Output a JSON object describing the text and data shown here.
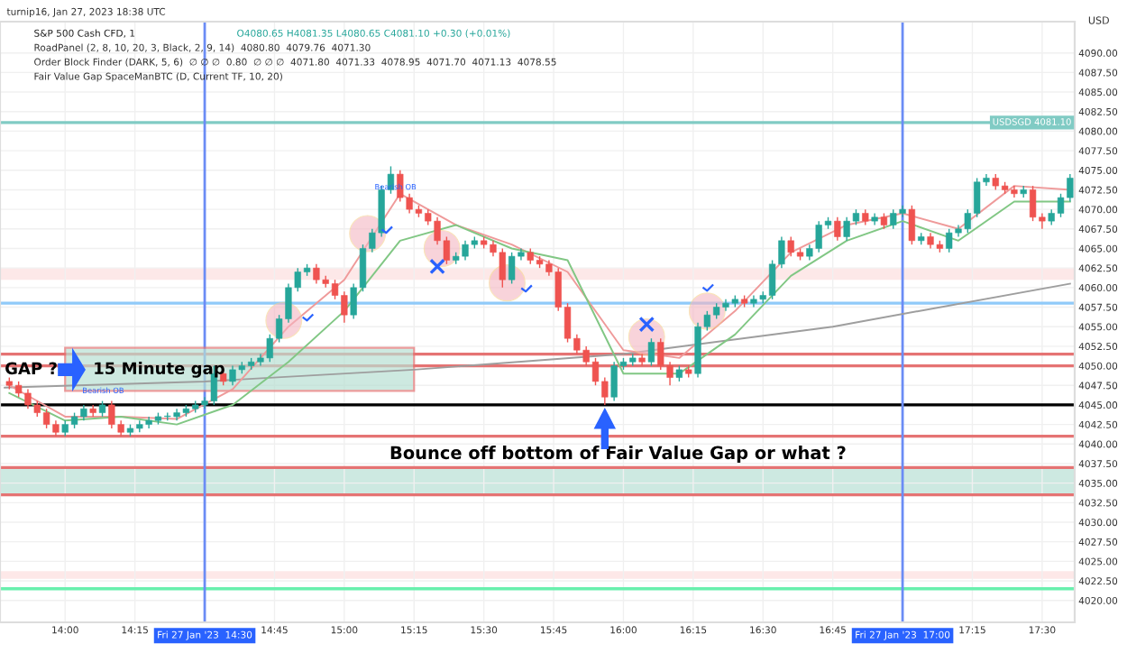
{
  "chart_data": {
    "type": "candlestick",
    "title": "S&P 500 Cash CFD, 1",
    "subtitle": "O4080.65 H4081.35 L4080.65 C4081.10 +0.30 (+0.01%)",
    "annotations": [
      "turnip16, Jan 27, 2023 18:38 UTC",
      "RoadPanel (2, 8, 10, 20, 3, Black, 2, 9, 14)  4080.80  4079.76  4071.30",
      "Order Block Finder (DARK, 5, 6)  ∅ ∅ ∅  0.80  ∅ ∅ ∅  4071.80  4071.33  4078.95  4071.70  4071.13  4078.55",
      "Fair Value Gap SpaceManBTC (D, Current TF, 10, 20)",
      "USD",
      {
        "text": "GAP ?",
        "x": "2023-01-27T13:47",
        "y": 4049.5
      },
      {
        "text": "15 Minute gap",
        "x": "2023-01-27T14:06",
        "y": 4049.5
      },
      "Bounce off bottom of Fair Value Gap or what ?",
      "Bearish OB",
      "Bearish OB"
    ],
    "colors": [
      "#ef5350",
      "#ef5350",
      "#ef5350",
      "#ef5350",
      "#ef5350",
      "#ef5350",
      "#26a69a",
      "#26a69a",
      "#26a69a",
      "#ef5350",
      "#26a69a",
      "#ef5350",
      "#ef5350",
      "#26a69a",
      "#26a69a",
      "#26a69a",
      "#26a69a",
      "#26a69a",
      "#26a69a",
      "#26a69a",
      "#26a69a",
      "#26a69a",
      "#26a69a",
      "#ef5350",
      "#26a69a",
      "#26a69a",
      "#26a69a",
      "#26a69a",
      "#26a69a",
      "#26a69a",
      "#26a69a",
      "#26a69a",
      "#26a69a",
      "#ef5350",
      "#ef5350",
      "#ef5350",
      "#ef5350",
      "#26a69a",
      "#26a69a",
      "#26a69a",
      "#26a69a",
      "#26a69a",
      "#ef5350",
      "#ef5350",
      "#ef5350",
      "#ef5350",
      "#ef5350",
      "#ef5350",
      "#26a69a",
      "#26a69a",
      "#26a69a",
      "#ef5350",
      "#ef5350",
      "#ef5350",
      "#26a69a",
      "#26a69a",
      "#ef5350",
      "#ef5350",
      "#ef5350",
      "#ef5350",
      "#ef5350",
      "#ef5350",
      "#ef5350",
      "#ef5350",
      "#ef5350",
      "#26a69a",
      "#26a69a",
      "#26a69a",
      "#ef5350",
      "#26a69a",
      "#ef5350",
      "#ef5350",
      "#26a69a",
      "#ef5350",
      "#26a69a",
      "#26a69a",
      "#26a69a",
      "#26a69a",
      "#26a69a",
      "#ef5350",
      "#26a69a",
      "#26a69a",
      "#26a69a",
      "#26a69a",
      "#ef5350",
      "#ef5350",
      "#26a69a",
      "#26a69a",
      "#26a69a",
      "#ef5350",
      "#26a69a",
      "#26a69a",
      "#ef5350",
      "#26a69a",
      "#ef5350",
      "#26a69a",
      "#26a69a",
      "#ef5350",
      "#26a69a",
      "#ef5350",
      "#ef5350",
      "#26a69a",
      "#26a69a",
      "#26a69a",
      "#26a69a",
      "#26a69a",
      "#ef5350",
      "#ef5350",
      "#ef5350",
      "#26a69a",
      "#ef5350",
      "#ef5350",
      "#26a69a",
      "#26a69a",
      "#26a69a"
    ],
    "x": [
      "2023-01-27T13:48",
      "2023-01-27T13:50",
      "2023-01-27T13:52",
      "2023-01-27T13:54",
      "2023-01-27T13:56",
      "2023-01-27T13:58",
      "2023-01-27T14:00",
      "2023-01-27T14:02",
      "2023-01-27T14:04",
      "2023-01-27T14:06",
      "2023-01-27T14:08",
      "2023-01-27T14:10",
      "2023-01-27T14:12",
      "2023-01-27T14:14",
      "2023-01-27T14:16",
      "2023-01-27T14:18",
      "2023-01-27T14:20",
      "2023-01-27T14:22",
      "2023-01-27T14:24",
      "2023-01-27T14:26",
      "2023-01-27T14:28",
      "2023-01-27T14:30",
      "2023-01-27T14:32",
      "2023-01-27T14:34",
      "2023-01-27T14:36",
      "2023-01-27T14:38",
      "2023-01-27T14:40",
      "2023-01-27T14:42",
      "2023-01-27T14:44",
      "2023-01-27T14:46",
      "2023-01-27T14:48",
      "2023-01-27T14:50",
      "2023-01-27T14:52",
      "2023-01-27T14:54",
      "2023-01-27T14:56",
      "2023-01-27T14:58",
      "2023-01-27T15:00",
      "2023-01-27T15:02",
      "2023-01-27T15:04",
      "2023-01-27T15:06",
      "2023-01-27T15:08",
      "2023-01-27T15:10",
      "2023-01-27T15:12",
      "2023-01-27T15:14",
      "2023-01-27T15:16",
      "2023-01-27T15:18",
      "2023-01-27T15:20",
      "2023-01-27T15:22",
      "2023-01-27T15:24",
      "2023-01-27T15:26",
      "2023-01-27T15:28",
      "2023-01-27T15:30",
      "2023-01-27T15:32",
      "2023-01-27T15:34",
      "2023-01-27T15:36",
      "2023-01-27T15:38",
      "2023-01-27T15:40",
      "2023-01-27T15:42",
      "2023-01-27T15:44",
      "2023-01-27T15:46",
      "2023-01-27T15:48",
      "2023-01-27T15:50",
      "2023-01-27T15:52",
      "2023-01-27T15:54",
      "2023-01-27T15:56",
      "2023-01-27T15:58",
      "2023-01-27T16:00",
      "2023-01-27T16:02",
      "2023-01-27T16:04",
      "2023-01-27T16:06",
      "2023-01-27T16:08",
      "2023-01-27T16:10",
      "2023-01-27T16:12",
      "2023-01-27T16:14",
      "2023-01-27T16:16",
      "2023-01-27T16:18",
      "2023-01-27T16:20",
      "2023-01-27T16:22",
      "2023-01-27T16:24",
      "2023-01-27T16:26",
      "2023-01-27T16:28",
      "2023-01-27T16:30",
      "2023-01-27T16:32",
      "2023-01-27T16:34",
      "2023-01-27T16:36",
      "2023-01-27T16:38",
      "2023-01-27T16:40",
      "2023-01-27T16:42",
      "2023-01-27T16:44",
      "2023-01-27T16:46",
      "2023-01-27T16:48",
      "2023-01-27T16:50",
      "2023-01-27T16:52",
      "2023-01-27T16:54",
      "2023-01-27T16:56",
      "2023-01-27T16:58",
      "2023-01-27T17:00",
      "2023-01-27T17:02",
      "2023-01-27T17:04",
      "2023-01-27T17:06",
      "2023-01-27T17:08",
      "2023-01-27T17:10",
      "2023-01-27T17:12",
      "2023-01-27T17:14",
      "2023-01-27T17:16",
      "2023-01-27T17:18",
      "2023-01-27T17:20",
      "2023-01-27T17:22",
      "2023-01-27T17:24",
      "2023-01-27T17:26",
      "2023-01-27T17:28",
      "2023-01-27T17:30",
      "2023-01-27T17:32",
      "2023-01-27T17:34",
      "2023-01-27T17:36"
    ],
    "ohlc": [
      [
        4048.0,
        4048.5,
        4047.0,
        4047.5
      ],
      [
        4047.5,
        4048.0,
        4046.0,
        4046.5
      ],
      [
        4046.5,
        4047.0,
        4044.5,
        4045.0
      ],
      [
        4045.0,
        4045.5,
        4043.5,
        4044.0
      ],
      [
        4044.0,
        4044.5,
        4042.0,
        4042.5
      ],
      [
        4042.5,
        4043.0,
        4041.0,
        4041.5
      ],
      [
        4041.5,
        4043.0,
        4041.0,
        4042.5
      ],
      [
        4042.5,
        4044.0,
        4042.0,
        4043.5
      ],
      [
        4043.5,
        4045.0,
        4043.0,
        4044.5
      ],
      [
        4044.5,
        4045.0,
        4043.5,
        4044.0
      ],
      [
        4044.0,
        4045.5,
        4043.5,
        4045.0
      ],
      [
        4045.0,
        4045.5,
        4042.0,
        4042.5
      ],
      [
        4042.5,
        4043.0,
        4041.0,
        4041.5
      ],
      [
        4041.5,
        4042.5,
        4041.0,
        4042.0
      ],
      [
        4042.0,
        4043.0,
        4041.5,
        4042.5
      ],
      [
        4042.5,
        4043.5,
        4042.0,
        4043.0
      ],
      [
        4043.0,
        4044.0,
        4042.5,
        4043.5
      ],
      [
        4043.5,
        4044.0,
        4043.0,
        4043.5
      ],
      [
        4043.5,
        4044.5,
        4043.0,
        4044.0
      ],
      [
        4044.0,
        4045.0,
        4043.5,
        4044.5
      ],
      [
        4044.5,
        4045.5,
        4044.0,
        4045.0
      ],
      [
        4045.0,
        4046.0,
        4044.5,
        4045.5
      ],
      [
        4045.5,
        4050.0,
        4045.0,
        4049.0
      ],
      [
        4049.0,
        4049.5,
        4047.5,
        4048.0
      ],
      [
        4048.0,
        4050.0,
        4047.5,
        4049.5
      ],
      [
        4049.5,
        4050.5,
        4049.0,
        4050.0
      ],
      [
        4050.0,
        4051.0,
        4049.5,
        4050.5
      ],
      [
        4050.5,
        4051.5,
        4050.0,
        4051.0
      ],
      [
        4051.0,
        4054.0,
        4050.5,
        4053.5
      ],
      [
        4053.5,
        4056.5,
        4053.0,
        4056.0
      ],
      [
        4056.0,
        4060.5,
        4055.5,
        4060.0
      ],
      [
        4060.0,
        4062.5,
        4059.5,
        4062.0
      ],
      [
        4062.0,
        4063.0,
        4061.5,
        4062.5
      ],
      [
        4062.5,
        4063.0,
        4060.5,
        4061.0
      ],
      [
        4061.0,
        4061.5,
        4060.0,
        4060.5
      ],
      [
        4060.5,
        4061.0,
        4058.5,
        4059.0
      ],
      [
        4059.0,
        4059.5,
        4055.5,
        4056.5
      ],
      [
        4056.5,
        4060.5,
        4056.0,
        4060.0
      ],
      [
        4060.0,
        4065.5,
        4059.5,
        4065.0
      ],
      [
        4065.0,
        4067.5,
        4064.5,
        4067.0
      ],
      [
        4067.0,
        4073.0,
        4066.5,
        4072.5
      ],
      [
        4072.5,
        4075.5,
        4072.0,
        4074.5
      ],
      [
        4074.5,
        4075.0,
        4071.0,
        4071.5
      ],
      [
        4071.5,
        4072.0,
        4069.5,
        4070.0
      ],
      [
        4070.0,
        4070.5,
        4069.0,
        4069.5
      ],
      [
        4069.5,
        4070.0,
        4068.0,
        4068.5
      ],
      [
        4068.5,
        4069.0,
        4065.5,
        4066.0
      ],
      [
        4066.0,
        4066.5,
        4063.0,
        4063.5
      ],
      [
        4063.5,
        4064.5,
        4063.0,
        4064.0
      ],
      [
        4064.0,
        4066.0,
        4063.5,
        4065.5
      ],
      [
        4065.5,
        4066.5,
        4065.0,
        4066.0
      ],
      [
        4066.0,
        4066.5,
        4065.0,
        4065.5
      ],
      [
        4065.5,
        4066.0,
        4064.0,
        4064.5
      ],
      [
        4064.5,
        4065.0,
        4060.0,
        4061.0
      ],
      [
        4061.0,
        4064.5,
        4060.5,
        4064.0
      ],
      [
        4064.0,
        4065.0,
        4063.5,
        4064.5
      ],
      [
        4064.5,
        4065.0,
        4063.0,
        4063.5
      ],
      [
        4063.5,
        4064.0,
        4062.5,
        4063.0
      ],
      [
        4063.0,
        4063.5,
        4061.5,
        4062.0
      ],
      [
        4062.0,
        4062.5,
        4057.0,
        4057.5
      ],
      [
        4057.5,
        4058.0,
        4053.0,
        4053.5
      ],
      [
        4053.5,
        4054.0,
        4051.5,
        4052.0
      ],
      [
        4052.0,
        4052.5,
        4050.0,
        4050.5
      ],
      [
        4050.5,
        4051.0,
        4047.5,
        4048.0
      ],
      [
        4048.0,
        4048.5,
        4045.0,
        4046.0
      ],
      [
        4046.0,
        4050.5,
        4045.5,
        4050.0
      ],
      [
        4050.0,
        4051.0,
        4049.5,
        4050.5
      ],
      [
        4050.5,
        4051.5,
        4050.0,
        4051.0
      ],
      [
        4051.0,
        4051.5,
        4050.0,
        4050.5
      ],
      [
        4050.5,
        4053.5,
        4050.0,
        4053.0
      ],
      [
        4053.0,
        4053.5,
        4049.5,
        4050.0
      ],
      [
        4050.0,
        4050.5,
        4047.5,
        4048.5
      ],
      [
        4048.5,
        4050.0,
        4048.0,
        4049.5
      ],
      [
        4049.5,
        4050.0,
        4048.5,
        4049.0
      ],
      [
        4049.0,
        4055.5,
        4048.5,
        4055.0
      ],
      [
        4055.0,
        4057.0,
        4054.5,
        4056.5
      ],
      [
        4056.5,
        4058.0,
        4056.0,
        4057.5
      ],
      [
        4057.5,
        4058.5,
        4057.0,
        4058.0
      ],
      [
        4058.0,
        4059.0,
        4057.5,
        4058.5
      ],
      [
        4058.5,
        4059.0,
        4057.5,
        4058.0
      ],
      [
        4058.0,
        4059.0,
        4057.5,
        4058.5
      ],
      [
        4058.5,
        4059.5,
        4058.0,
        4059.0
      ],
      [
        4059.0,
        4063.5,
        4058.5,
        4063.0
      ],
      [
        4063.0,
        4066.5,
        4062.5,
        4066.0
      ],
      [
        4066.0,
        4066.5,
        4064.0,
        4064.5
      ],
      [
        4064.5,
        4065.0,
        4063.5,
        4064.0
      ],
      [
        4064.0,
        4065.5,
        4063.5,
        4065.0
      ],
      [
        4065.0,
        4068.5,
        4064.5,
        4068.0
      ],
      [
        4068.0,
        4069.0,
        4067.5,
        4068.5
      ],
      [
        4068.5,
        4069.0,
        4066.0,
        4066.5
      ],
      [
        4066.5,
        4069.0,
        4066.0,
        4068.5
      ],
      [
        4068.5,
        4070.0,
        4068.0,
        4069.5
      ],
      [
        4069.5,
        4070.0,
        4068.0,
        4068.5
      ],
      [
        4068.5,
        4069.5,
        4068.0,
        4069.0
      ],
      [
        4069.0,
        4069.5,
        4067.5,
        4068.0
      ],
      [
        4068.0,
        4070.0,
        4067.5,
        4069.5
      ],
      [
        4069.5,
        4070.5,
        4069.0,
        4070.0
      ],
      [
        4070.0,
        4070.5,
        4065.5,
        4066.0
      ],
      [
        4066.0,
        4067.0,
        4065.5,
        4066.5
      ],
      [
        4066.5,
        4067.0,
        4065.0,
        4065.5
      ],
      [
        4065.5,
        4066.0,
        4064.5,
        4065.0
      ],
      [
        4065.0,
        4067.5,
        4064.5,
        4067.0
      ],
      [
        4067.0,
        4068.0,
        4066.5,
        4067.5
      ],
      [
        4067.5,
        4070.0,
        4067.0,
        4069.5
      ],
      [
        4069.5,
        4074.0,
        4069.0,
        4073.5
      ],
      [
        4073.5,
        4074.5,
        4073.0,
        4074.0
      ],
      [
        4074.0,
        4074.5,
        4072.5,
        4073.0
      ],
      [
        4073.0,
        4073.5,
        4072.0,
        4072.5
      ],
      [
        4072.5,
        4073.0,
        4071.5,
        4072.0
      ],
      [
        4072.0,
        4073.0,
        4071.5,
        4072.5
      ],
      [
        4072.5,
        4073.0,
        4068.5,
        4069.0
      ],
      [
        4069.0,
        4069.5,
        4067.5,
        4068.5
      ],
      [
        4068.5,
        4070.0,
        4068.0,
        4069.5
      ],
      [
        4069.5,
        4072.0,
        4069.0,
        4071.5
      ],
      [
        4071.5,
        4074.5,
        4071.0,
        4074.0
      ]
    ],
    "series": [
      {
        "type": "line",
        "color": "#9e9e9e",
        "x": [
          "2023-01-27T13:47",
          "2023-01-27T14:30",
          "2023-01-27T15:15",
          "2023-01-27T16:00",
          "2023-01-27T16:45",
          "2023-01-27T17:36"
        ],
        "values": [
          4047.2,
          4048.0,
          4049.5,
          4051.5,
          4055.0,
          4060.5
        ]
      },
      {
        "type": "line",
        "color": "#ef9a9a",
        "x": [
          "2023-01-27T13:48",
          "2023-01-27T14:00",
          "2023-01-27T14:12",
          "2023-01-27T14:24",
          "2023-01-27T14:36",
          "2023-01-27T14:48",
          "2023-01-27T15:00",
          "2023-01-27T15:12",
          "2023-01-27T15:24",
          "2023-01-27T15:36",
          "2023-01-27T15:48",
          "2023-01-27T16:00",
          "2023-01-27T16:12",
          "2023-01-27T16:24",
          "2023-01-27T16:36",
          "2023-01-27T16:48",
          "2023-01-27T17:00",
          "2023-01-27T17:12",
          "2023-01-27T17:24",
          "2023-01-27T17:36"
        ],
        "values": [
          4047.5,
          4043.5,
          4043.5,
          4043.2,
          4047.0,
          4055.0,
          4061.0,
          4072.0,
          4068.0,
          4065.5,
          4062.0,
          4052.0,
          4051.0,
          4057.0,
          4064.5,
          4068.0,
          4069.5,
          4067.5,
          4073.0,
          4072.5
        ]
      },
      {
        "type": "line",
        "color": "#81c784",
        "x": [
          "2023-01-27T13:48",
          "2023-01-27T14:00",
          "2023-01-27T14:12",
          "2023-01-27T14:24",
          "2023-01-27T14:36",
          "2023-01-27T14:48",
          "2023-01-27T15:00",
          "2023-01-27T15:12",
          "2023-01-27T15:24",
          "2023-01-27T15:36",
          "2023-01-27T15:48",
          "2023-01-27T16:00",
          "2023-01-27T16:12",
          "2023-01-27T16:24",
          "2023-01-27T16:36",
          "2023-01-27T16:48",
          "2023-01-27T17:00",
          "2023-01-27T17:12",
          "2023-01-27T17:24",
          "2023-01-27T17:36"
        ],
        "values": [
          4046.5,
          4043.0,
          4043.5,
          4042.5,
          4045.0,
          4050.5,
          4057.0,
          4066.0,
          4068.0,
          4065.0,
          4063.5,
          4049.0,
          4049.0,
          4054.0,
          4061.5,
          4066.0,
          4068.5,
          4066.0,
          4071.0,
          4071.0
        ]
      }
    ],
    "ref_lines": [
      {
        "axis": "y",
        "value": 4081.1,
        "label": "USDSGD 4081.10",
        "color": "#80cbc4"
      },
      {
        "axis": "y",
        "value": 4058,
        "color": "#90caf9"
      },
      {
        "axis": "y",
        "value": 4051.5,
        "color": "#e57373"
      },
      {
        "axis": "y",
        "value": 4050,
        "color": "#e57373"
      },
      {
        "axis": "y",
        "value": 4045,
        "color": "#000000"
      },
      {
        "axis": "y",
        "value": 4041,
        "color": "#e57373"
      },
      {
        "axis": "y",
        "value": 4037,
        "color": "#e57373"
      },
      {
        "axis": "y",
        "value": 4033.5,
        "color": "#e57373"
      },
      {
        "axis": "y",
        "value": 4021.5,
        "color": "#69f0ae"
      },
      {
        "axis": "x",
        "value": "2023-01-27T14:30",
        "label": "Fri 27 Jan '23  14:30",
        "color": "#6b8cf5"
      },
      {
        "axis": "x",
        "value": "2023-01-27T17:00",
        "label": "Fri 27 Jan '23  17:00",
        "color": "#6b8cf5"
      }
    ],
    "bands": [
      {
        "axis": "y",
        "from": 4033.5,
        "to": 4037,
        "color": "#cde9e1"
      },
      {
        "axis": "y",
        "from": 4061,
        "to": 4062.5,
        "color": "#fde8e8"
      },
      {
        "axis": "y",
        "from": 4022.75,
        "to": 4023.75,
        "color": "#fde8e8"
      }
    ],
    "xlim": [
      "2023-01-27T13:46",
      "2023-01-27T17:37"
    ],
    "xticks": [
      {
        "value": "2023-01-27T14:00",
        "label": "14:00"
      },
      {
        "value": "2023-01-27T14:15",
        "label": "14:15"
      },
      {
        "value": "2023-01-27T14:45",
        "label": "14:45"
      },
      {
        "value": "2023-01-27T15:00",
        "label": "15:00"
      },
      {
        "value": "2023-01-27T15:15",
        "label": "15:15"
      },
      {
        "value": "2023-01-27T15:30",
        "label": "15:30"
      },
      {
        "value": "2023-01-27T15:45",
        "label": "15:45"
      },
      {
        "value": "2023-01-27T16:00",
        "label": "16:00"
      },
      {
        "value": "2023-01-27T16:15",
        "label": "16:15"
      },
      {
        "value": "2023-01-27T16:30",
        "label": "16:30"
      },
      {
        "value": "2023-01-27T16:45",
        "label": "16:45"
      },
      {
        "value": "2023-01-27T17:15",
        "label": "17:15"
      },
      {
        "value": "2023-01-27T17:30",
        "label": "17:30"
      }
    ],
    "ylim": [
      4017.2,
      4094
    ],
    "yticks": [
      {
        "value": 4020,
        "label": "4020.00"
      },
      {
        "value": 4022.5,
        "label": "4022.50"
      },
      {
        "value": 4025,
        "label": "4025.00"
      },
      {
        "value": 4027.5,
        "label": "4027.50"
      },
      {
        "value": 4030,
        "label": "4030.00"
      },
      {
        "value": 4032.5,
        "label": "4032.50"
      },
      {
        "value": 4035,
        "label": "4035.00"
      },
      {
        "value": 4037.5,
        "label": "4037.50"
      },
      {
        "value": 4040,
        "label": "4040.00"
      },
      {
        "value": 4042.5,
        "label": "4042.50"
      },
      {
        "value": 4045,
        "label": "4045.00"
      },
      {
        "value": 4047.5,
        "label": "4047.50"
      },
      {
        "value": 4050,
        "label": "4050.00"
      },
      {
        "value": 4052.5,
        "label": "4052.50"
      },
      {
        "value": 4055,
        "label": "4055.00"
      },
      {
        "value": 4057.5,
        "label": "4057.50"
      },
      {
        "value": 4060,
        "label": "4060.00"
      },
      {
        "value": 4062.5,
        "label": "4062.50"
      },
      {
        "value": 4065,
        "label": "4065.00"
      },
      {
        "value": 4067.5,
        "label": "4067.50"
      },
      {
        "value": 4070,
        "label": "4070.00"
      },
      {
        "value": 4072.5,
        "label": "4072.50"
      },
      {
        "value": 4075,
        "label": "4075.00"
      },
      {
        "value": 4077.5,
        "label": "4077.50"
      },
      {
        "value": 4080,
        "label": "4080.00"
      },
      {
        "value": 4082.5,
        "label": "4082.50"
      },
      {
        "value": 4085,
        "label": "4085.00"
      },
      {
        "value": 4087.5,
        "label": "4087.50"
      },
      {
        "value": 4090,
        "label": "4090.00"
      }
    ],
    "grid": true
  }
}
